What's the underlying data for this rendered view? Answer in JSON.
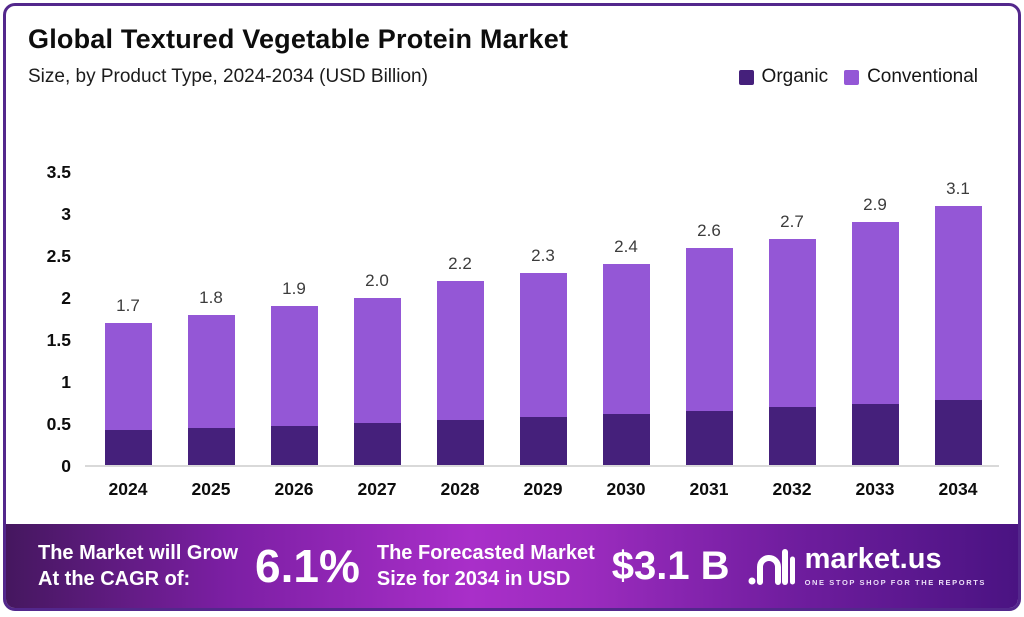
{
  "header": {
    "title": "Global Textured Vegetable Protein Market",
    "subtitle": "Size, by Product Type, 2024-2034 (USD Billion)"
  },
  "legend": [
    {
      "label": "Organic",
      "color": "#45207B"
    },
    {
      "label": "Conventional",
      "color": "#9457D6"
    }
  ],
  "chart_data": {
    "type": "bar",
    "stacked": true,
    "title": "Global Textured Vegetable Protein Market",
    "subtitle": "Size, by Product Type, 2024-2034 (USD Billion)",
    "xlabel": "",
    "ylabel": "",
    "grid": false,
    "legend_position": "top-right",
    "categories": [
      "2024",
      "2025",
      "2026",
      "2027",
      "2028",
      "2029",
      "2030",
      "2031",
      "2032",
      "2033",
      "2034"
    ],
    "series": [
      {
        "name": "Organic",
        "color": "#45207B",
        "values": [
          0.43,
          0.45,
          0.48,
          0.51,
          0.55,
          0.58,
          0.62,
          0.66,
          0.7,
          0.74,
          0.78
        ]
      },
      {
        "name": "Conventional",
        "color": "#9457D6",
        "values": [
          1.27,
          1.35,
          1.42,
          1.49,
          1.65,
          1.72,
          1.78,
          1.94,
          2.0,
          2.16,
          2.32
        ]
      }
    ],
    "total_labels": [
      "1.7",
      "1.8",
      "1.9",
      "2.0",
      "2.2",
      "2.3",
      "2.4",
      "2.6",
      "2.7",
      "2.9",
      "3.1"
    ],
    "y_ticks": [
      "0",
      "0.5",
      "1",
      "1.5",
      "2",
      "2.5",
      "3",
      "3.5"
    ],
    "ylim": [
      0,
      3.5
    ]
  },
  "footer": {
    "cagr_line1": "The Market will Grow",
    "cagr_line2": "At the CAGR of:",
    "cagr_value": "6.1%",
    "forecast_line1": "The Forecasted Market",
    "forecast_line2": "Size for 2034 in USD",
    "forecast_value": "$3.1 B",
    "brand_name": "market.us",
    "brand_tagline": "ONE STOP SHOP FOR THE REPORTS"
  },
  "colors": {
    "organic": "#45207B",
    "conventional": "#9457D6",
    "frame_border": "#53278C",
    "banner_gradient": [
      "#45175F",
      "#A92FC9",
      "#4A1382"
    ],
    "axis_line": "#D9D9D9"
  }
}
